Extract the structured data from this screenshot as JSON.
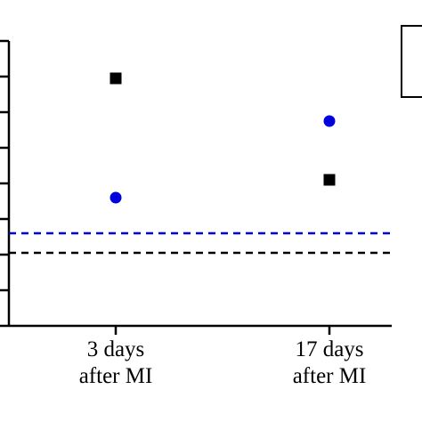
{
  "chart_data": {
    "type": "scatter",
    "categories": [
      "3 days after MI",
      "17 days after MI"
    ],
    "category_label_lines": [
      [
        "3 days",
        "after MI"
      ],
      [
        "17 days",
        "after MI"
      ]
    ],
    "series": [
      {
        "marker": "square",
        "color": "#000000",
        "values": [
          6.95,
          4.1
        ]
      },
      {
        "marker": "circle",
        "color": "#0000dd",
        "values": [
          3.6,
          5.75
        ]
      }
    ],
    "reference_lines": [
      {
        "value": 2.6,
        "color": "#0000dd",
        "style": "dashed"
      },
      {
        "value": 2.05,
        "color": "#000000",
        "style": "dashed"
      }
    ],
    "ylim": [
      0,
      8
    ],
    "y_major_ticks": 8,
    "legend": {
      "position": "top-right"
    },
    "grid": false
  }
}
